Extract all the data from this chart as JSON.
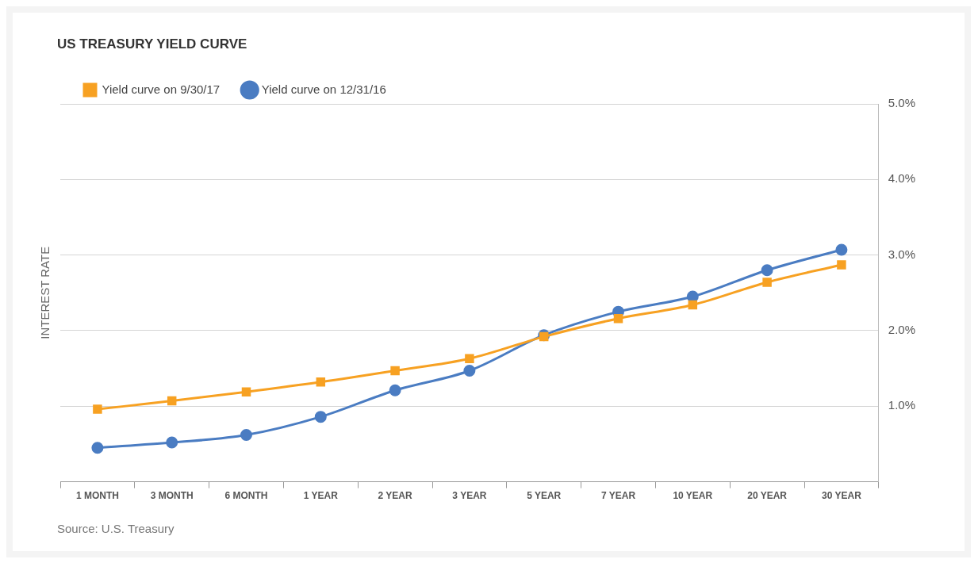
{
  "chart_data": {
    "type": "line",
    "title": "US TREASURY YIELD CURVE",
    "ylabel": "INTEREST RATE",
    "annotations": [
      "Source: U.S. Treasury"
    ],
    "categories": [
      "1 MONTH",
      "3 MONTH",
      "6 MONTH",
      "1 YEAR",
      "2 YEAR",
      "3 YEAR",
      "5 YEAR",
      "7 YEAR",
      "10 YEAR",
      "20 YEAR",
      "30 YEAR"
    ],
    "series": [
      {
        "name": "Yield curve on 9/30/17",
        "color": "#f7a122",
        "marker": "square",
        "values": [
          0.96,
          1.07,
          1.19,
          1.32,
          1.47,
          1.63,
          1.92,
          2.16,
          2.34,
          2.64,
          2.87
        ]
      },
      {
        "name": "Yield curve on 12/31/16",
        "color": "#4a7cc2",
        "marker": "circle",
        "values": [
          0.45,
          0.52,
          0.62,
          0.86,
          1.21,
          1.47,
          1.94,
          2.25,
          2.45,
          2.8,
          3.07
        ]
      }
    ],
    "ylim": [
      0,
      5
    ],
    "yticks": [
      {
        "value": 1,
        "label": "1.0%"
      },
      {
        "value": 2,
        "label": "2.0%"
      },
      {
        "value": 3,
        "label": "3.0%"
      },
      {
        "value": 4,
        "label": "4.0%"
      },
      {
        "value": 5,
        "label": "5.0%"
      }
    ],
    "grid": "y",
    "legend": "top left"
  }
}
